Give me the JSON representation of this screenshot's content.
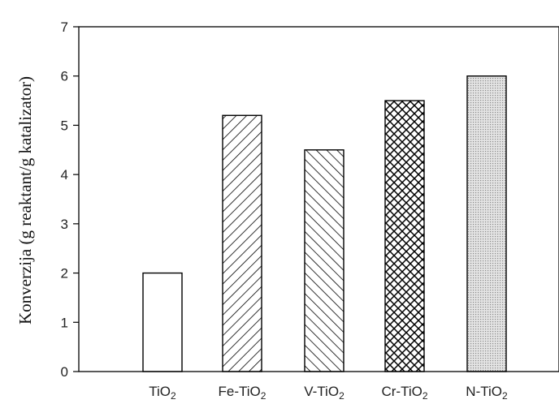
{
  "chart_data": {
    "type": "bar",
    "categories": [
      {
        "base": "TiO",
        "sub": "2"
      },
      {
        "base": "Fe-TiO",
        "sub": "2"
      },
      {
        "base": "V-TiO",
        "sub": "2"
      },
      {
        "base": "Cr-TiO",
        "sub": "2"
      },
      {
        "base": "N-TiO",
        "sub": "2"
      }
    ],
    "values": [
      2.0,
      5.2,
      4.5,
      5.5,
      6.0
    ],
    "patterns": [
      "none",
      "diag-up",
      "diag-down",
      "crosshatch",
      "dots"
    ],
    "ylabel": "Konverzija (g reaktant/g katalizator)",
    "ylim": [
      0,
      7
    ],
    "yticks": [
      "0",
      "1",
      "2",
      "3",
      "4",
      "5",
      "6",
      "7"
    ],
    "grid": false,
    "colors": {
      "stroke": "#000000",
      "fill": "#ffffff",
      "dots": "#9a9a9a"
    }
  }
}
